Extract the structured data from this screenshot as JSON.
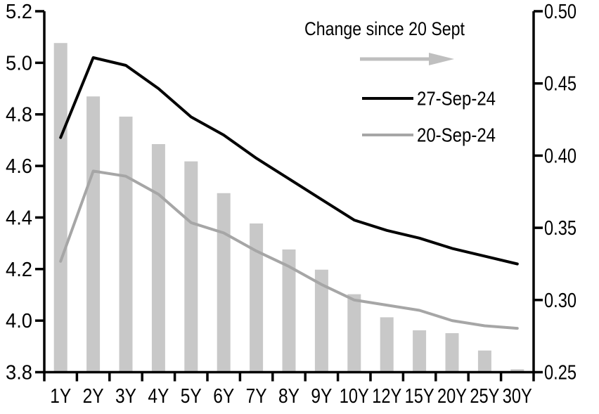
{
  "chart_data": {
    "type": "combo",
    "title": "",
    "categories": [
      "1Y",
      "2Y",
      "3Y",
      "4Y",
      "5Y",
      "6Y",
      "7Y",
      "8Y",
      "9Y",
      "10Y",
      "12Y",
      "15Y",
      "20Y",
      "25Y",
      "30Y"
    ],
    "series": [
      {
        "name": "Change since 20 Sept",
        "type": "bar",
        "axis": "right",
        "values": [
          0.478,
          0.441,
          0.427,
          0.408,
          0.396,
          0.374,
          0.353,
          0.335,
          0.321,
          0.304,
          0.288,
          0.279,
          0.277,
          0.265,
          0.252
        ]
      },
      {
        "name": "27-Sep-24",
        "type": "line",
        "axis": "left",
        "values": [
          4.71,
          5.02,
          4.99,
          4.9,
          4.79,
          4.72,
          4.63,
          4.55,
          4.47,
          4.39,
          4.35,
          4.32,
          4.28,
          4.25,
          4.22
        ]
      },
      {
        "name": "20-Sep-24",
        "type": "line",
        "axis": "left",
        "values": [
          4.23,
          4.58,
          4.56,
          4.49,
          4.38,
          4.34,
          4.27,
          4.21,
          4.14,
          4.08,
          4.06,
          4.04,
          4.0,
          3.98,
          3.97
        ]
      }
    ],
    "left_axis": {
      "min": 3.8,
      "max": 5.2,
      "step": 0.2,
      "tick_labels": [
        "3.8",
        "4.0",
        "4.2",
        "4.4",
        "4.6",
        "4.8",
        "5.0",
        "5.2"
      ]
    },
    "right_axis": {
      "min": 0.25,
      "max": 0.5,
      "step": 0.05,
      "tick_labels": [
        "0.25",
        "0.30",
        "0.35",
        "0.40",
        "0.45",
        "0.50"
      ]
    },
    "legend": {
      "title": "Change since 20 Sept",
      "arrow_icon": "right-arrow",
      "items": [
        "27-Sep-24",
        "20-Sep-24"
      ],
      "position": "top-right-inside"
    },
    "grid": false,
    "colors": {
      "bar": "#c8c8c8",
      "line_27sep": "#000000",
      "line_20sep": "#a6a6a6",
      "arrow": "#bfbfbf",
      "axis": "#000000"
    }
  }
}
